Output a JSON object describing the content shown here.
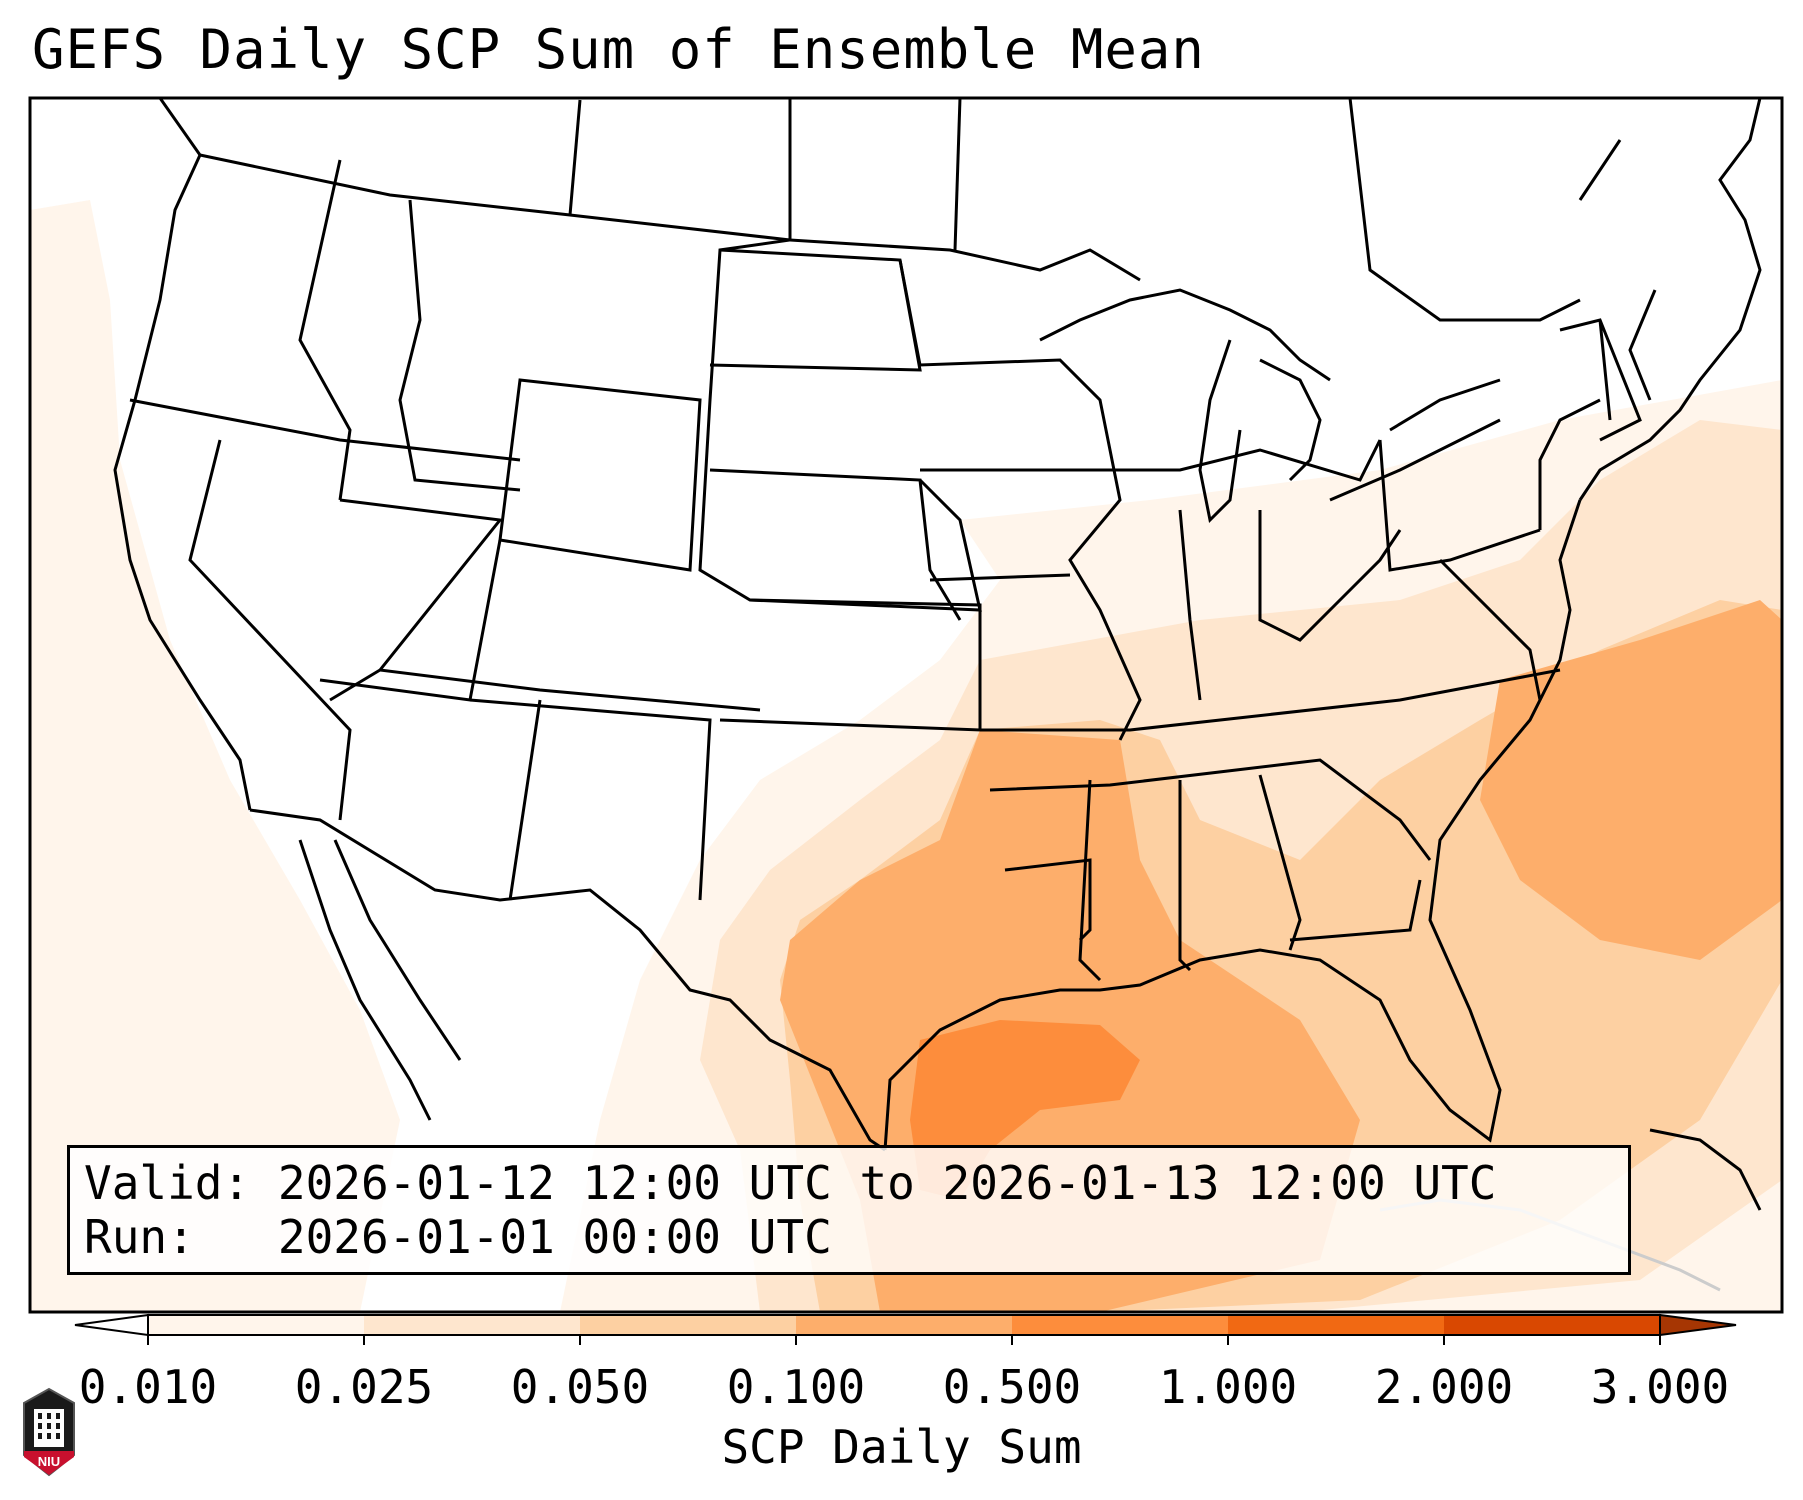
{
  "title": "GEFS Daily SCP Sum of Ensemble Mean",
  "info": {
    "valid_label": "Valid:",
    "valid_value": "2026-01-12 12:00 UTC to 2026-01-13 12:00 UTC",
    "run_label": "Run:",
    "run_value": "2026-01-01 00:00 UTC"
  },
  "colorbar": {
    "label": "SCP Daily Sum",
    "ticks": [
      "0.010",
      "0.025",
      "0.050",
      "0.100",
      "0.500",
      "1.000",
      "2.000",
      "3.000"
    ],
    "colors": [
      "#fff5eb",
      "#fee6ce",
      "#fdd0a2",
      "#fdae6b",
      "#fd8d3c",
      "#f16913",
      "#d94801",
      "#a63603"
    ],
    "extend": "both"
  },
  "logo": {
    "name": "niu-logo",
    "text": "NIU"
  },
  "map": {
    "domain": "CONUS",
    "max_region": "western Gulf of Mexico / Texas coast",
    "shading": "orange sequential (Oranges)"
  }
}
